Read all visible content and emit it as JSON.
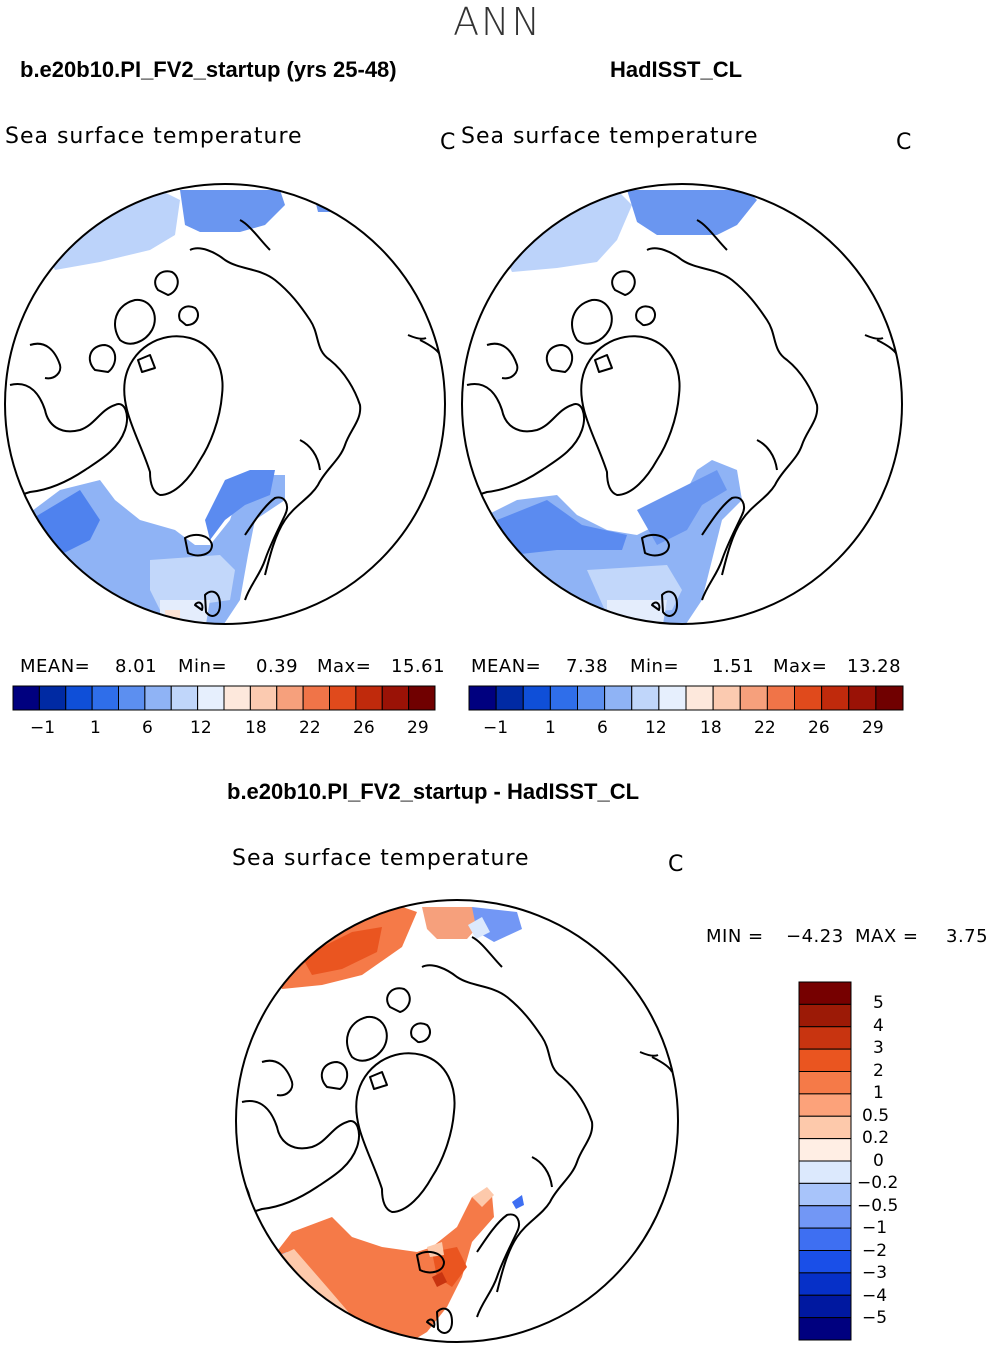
{
  "season": "ANN",
  "colors": {
    "abs_scale": [
      "#00007f",
      "#002aa3",
      "#0f4fd8",
      "#2f6eea",
      "#5c8ff0",
      "#8fb3f5",
      "#c0d6fa",
      "#e6effd",
      "#fde8dc",
      "#fbcab0",
      "#f6a07c",
      "#f07448",
      "#e04a1c",
      "#c02a0c",
      "#9a1206",
      "#700000"
    ],
    "diff_scale": [
      "#00007f",
      "#0018a0",
      "#0630c8",
      "#1a4fe8",
      "#3e6ff2",
      "#7297f5",
      "#a8c4fa",
      "#dce9fd",
      "#ffeee4",
      "#fdc9ab",
      "#fca27a",
      "#f57a48",
      "#ea5520",
      "#c83410",
      "#9c1a06",
      "#760000"
    ],
    "land": "#ffffff",
    "coast": "#000000"
  },
  "panels": {
    "left": {
      "title": "b.e20b10.PI_FV2_startup (yrs 25-48)",
      "variable": "Sea surface temperature",
      "unit": "C",
      "mean_label": "MEAN=",
      "mean": "8.01",
      "min_label": "Min=",
      "min": "0.39",
      "max_label": "Max=",
      "max": "15.61",
      "ticks": [
        "−1",
        "1",
        "6",
        "12",
        "18",
        "22",
        "26",
        "29"
      ]
    },
    "right": {
      "title": "HadISST_CL",
      "variable": "Sea surface temperature",
      "unit": "C",
      "mean_label": "MEAN=",
      "mean": "7.38",
      "min_label": "Min=",
      "min": "1.51",
      "max_label": "Max=",
      "max": "13.28",
      "ticks": [
        "−1",
        "1",
        "6",
        "12",
        "18",
        "22",
        "26",
        "29"
      ]
    },
    "diff": {
      "title": "b.e20b10.PI_FV2_startup - HadISST_CL",
      "variable": "Sea surface temperature",
      "unit": "C",
      "min_label": "MIN =",
      "min": "−4.23",
      "max_label": "MAX =",
      "max": "3.75",
      "levels": [
        "5",
        "4",
        "3",
        "2",
        "1",
        "0.5",
        "0.2",
        "0",
        "−0.2",
        "−0.5",
        "−1",
        "−2",
        "−3",
        "−4",
        "−5"
      ]
    }
  }
}
